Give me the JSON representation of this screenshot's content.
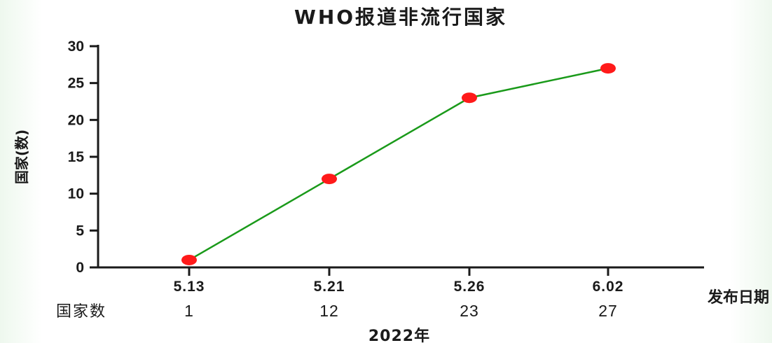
{
  "chart_data": {
    "type": "line",
    "title": "WHO报道非流行国家",
    "ylabel": "国家(数)",
    "xlabel": "发布日期",
    "x_unit_label": "2022年",
    "categories": [
      "5.13",
      "5.21",
      "5.26",
      "6.02"
    ],
    "series": [
      {
        "values": [
          1,
          12,
          23,
          27
        ]
      }
    ],
    "count_row": {
      "label": "国家数",
      "values": [
        "1",
        "12",
        "23",
        "27"
      ]
    },
    "yticks": [
      "0",
      "5",
      "10",
      "15",
      "20",
      "25",
      "30"
    ],
    "ylim": [
      0,
      30
    ],
    "grid": false,
    "line_color": "#1a9a1a",
    "marker_color": "#ff1a1a",
    "axis_color": "#1a1a1a"
  }
}
